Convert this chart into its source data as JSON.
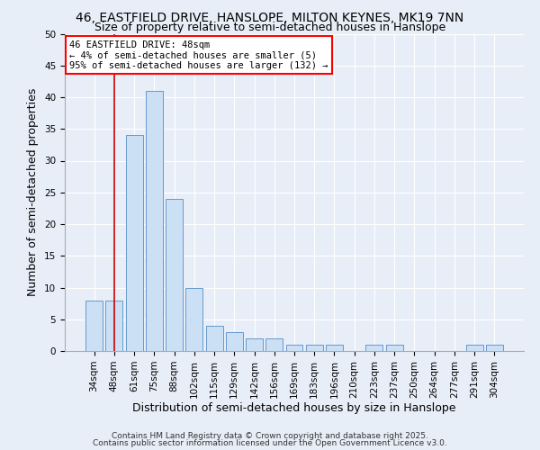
{
  "title1": "46, EASTFIELD DRIVE, HANSLOPE, MILTON KEYNES, MK19 7NN",
  "title2": "Size of property relative to semi-detached houses in Hanslope",
  "xlabel": "Distribution of semi-detached houses by size in Hanslope",
  "ylabel": "Number of semi-detached properties",
  "categories": [
    "34sqm",
    "48sqm",
    "61sqm",
    "75sqm",
    "88sqm",
    "102sqm",
    "115sqm",
    "129sqm",
    "142sqm",
    "156sqm",
    "169sqm",
    "183sqm",
    "196sqm",
    "210sqm",
    "223sqm",
    "237sqm",
    "250sqm",
    "264sqm",
    "277sqm",
    "291sqm",
    "304sqm"
  ],
  "values": [
    8,
    8,
    34,
    41,
    24,
    10,
    4,
    3,
    2,
    2,
    1,
    1,
    1,
    0,
    1,
    1,
    0,
    0,
    0,
    1,
    1
  ],
  "bar_color": "#cce0f5",
  "bar_edge_color": "#6699cc",
  "highlight_bar_index": 1,
  "vline_color": "#cc0000",
  "ylim": [
    0,
    50
  ],
  "yticks": [
    0,
    5,
    10,
    15,
    20,
    25,
    30,
    35,
    40,
    45,
    50
  ],
  "annotation_title": "46 EASTFIELD DRIVE: 48sqm",
  "annotation_line1": "← 4% of semi-detached houses are smaller (5)",
  "annotation_line2": "95% of semi-detached houses are larger (132) →",
  "footer1": "Contains HM Land Registry data © Crown copyright and database right 2025.",
  "footer2": "Contains public sector information licensed under the Open Government Licence v3.0.",
  "bg_color": "#e8eef8",
  "plot_bg_color": "#e8eef8",
  "grid_color": "#ffffff",
  "title_fontsize": 10,
  "subtitle_fontsize": 9,
  "tick_fontsize": 7.5,
  "label_fontsize": 9,
  "footer_fontsize": 6.5
}
